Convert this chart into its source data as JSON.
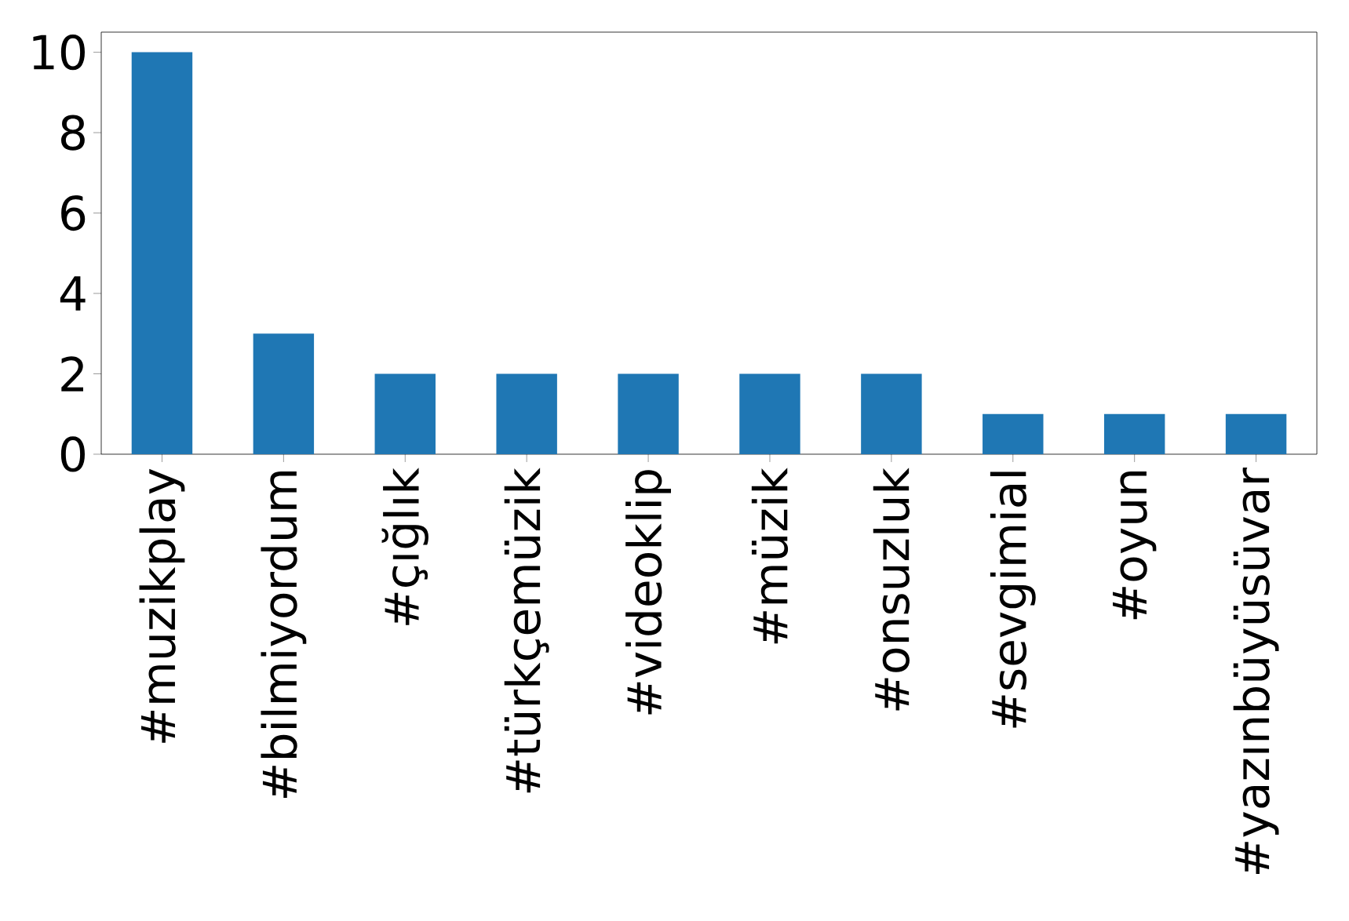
{
  "chart_data": {
    "type": "bar",
    "categories": [
      "#muzikplay",
      "#bilmiyordum",
      "#çığlık",
      "#türkçemüzik",
      "#videoklip",
      "#müzik",
      "#onsuzluk",
      "#sevgimial",
      "#oyun",
      "#yazınbüyüsüvar"
    ],
    "values": [
      10,
      3,
      2,
      2,
      2,
      2,
      2,
      1,
      1,
      1
    ],
    "color": "#1f77b4",
    "ylim": [
      0,
      10.5
    ],
    "yticks": [
      0,
      2,
      4,
      6,
      8,
      10
    ],
    "grid": false
  }
}
